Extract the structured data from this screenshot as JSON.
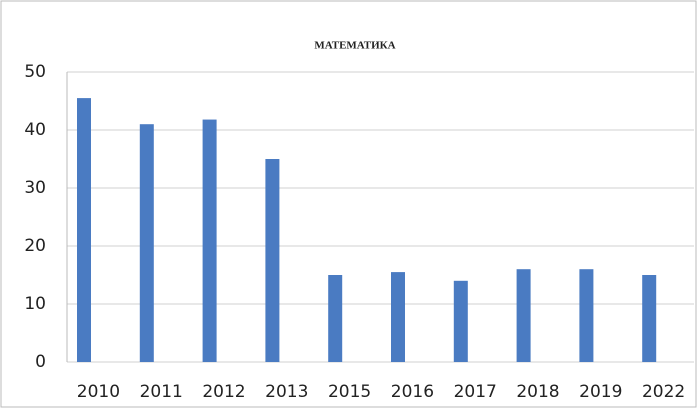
{
  "chart_data": {
    "type": "bar",
    "title": "МАТЕМАТИКА",
    "categories": [
      "2010",
      "2011",
      "2012",
      "2013",
      "2015",
      "2016",
      "2017",
      "2018",
      "2019",
      "2022"
    ],
    "values": [
      45.5,
      41,
      41.8,
      35,
      15,
      15.5,
      14,
      16,
      16,
      15
    ],
    "color": "#4a7bc2",
    "ylim": [
      0,
      50
    ],
    "yticks": [
      0,
      10,
      20,
      30,
      40,
      50
    ],
    "grid": true
  }
}
